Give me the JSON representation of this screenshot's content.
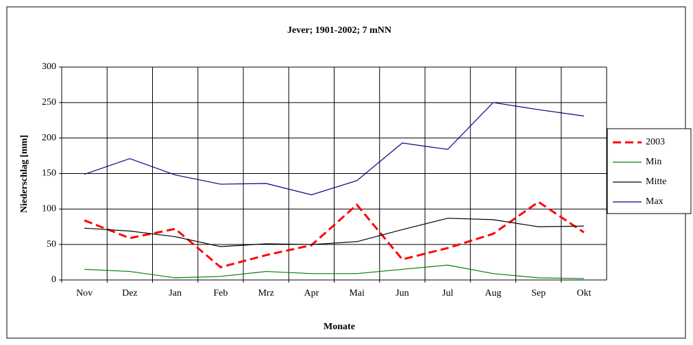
{
  "chart_data": {
    "type": "line",
    "title": "Jever; 1901-2002; 7 mNN",
    "x_label": "Monate",
    "y_label": "Niederschlag [mm]",
    "categories": [
      "Nov",
      "Dez",
      "Jan",
      "Feb",
      "Mrz",
      "Apr",
      "Mai",
      "Jun",
      "Jul",
      "Aug",
      "Sep",
      "Okt"
    ],
    "series": [
      {
        "name": "2003",
        "color": "#ff0000",
        "style": "dashed",
        "values": [
          84,
          59,
          72,
          18,
          35,
          49,
          106,
          29,
          45,
          65,
          110,
          67
        ]
      },
      {
        "name": "Min",
        "color": "#008000",
        "style": "solid",
        "values": [
          15,
          12,
          3,
          5,
          12,
          9,
          9,
          15,
          21,
          9,
          3,
          2
        ]
      },
      {
        "name": "Mitte",
        "color": "#000000",
        "style": "solid",
        "values": [
          73,
          69,
          61,
          47,
          51,
          50,
          54,
          71,
          87,
          85,
          75,
          76
        ]
      },
      {
        "name": "Max",
        "color": "#000080",
        "style": "solid",
        "values": [
          149,
          171,
          148,
          135,
          136,
          120,
          140,
          193,
          184,
          250,
          240,
          231
        ]
      }
    ],
    "ylim": [
      0,
      300
    ],
    "yticks": [
      0,
      50,
      100,
      150,
      200,
      250,
      300
    ],
    "grid": true,
    "legend": "right"
  }
}
